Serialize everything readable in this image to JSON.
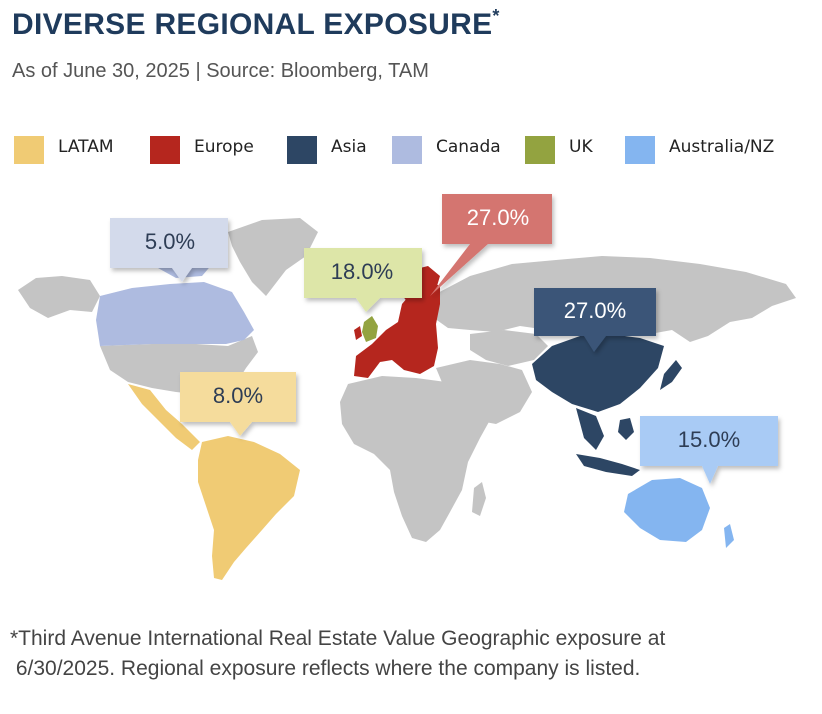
{
  "title": "DIVERSE REGIONAL EXPOSURE",
  "title_mark": "*",
  "subtitle": "As of June 30, 2025  |  Source: Bloomberg, TAM",
  "legend": [
    {
      "label": "LATAM",
      "color": "#f0cb74"
    },
    {
      "label": "Europe",
      "color": "#b5261e"
    },
    {
      "label": "Asia",
      "color": "#2d4664"
    },
    {
      "label": "Canada",
      "color": "#aebbe0"
    },
    {
      "label": "UK",
      "color": "#93a340"
    },
    {
      "label": "Australia/NZ",
      "color": "#84b5f0"
    }
  ],
  "map": {
    "land_color": "#c4c4c4",
    "regions": {
      "latam": {
        "value": "8.0%",
        "color": "#f0cb74",
        "callout_color": "#f5dc9c",
        "text_color": "#2d3d55"
      },
      "europe": {
        "value": "27.0%",
        "color": "#b5261e",
        "callout_color": "#d47470",
        "text_color": "#ffffff"
      },
      "asia": {
        "value": "27.0%",
        "color": "#2d4664",
        "callout_color": "#3a5578",
        "text_color": "#ffffff"
      },
      "canada": {
        "value": "5.0%",
        "color": "#aebbe0",
        "callout_color": "#d3daeb",
        "text_color": "#2d3d55"
      },
      "uk": {
        "value": "18.0%",
        "color": "#93a340",
        "callout_color": "#dde6a8",
        "text_color": "#2d3d55"
      },
      "australia_nz": {
        "value": "15.0%",
        "color": "#84b5f0",
        "callout_color": "#a9cbf5",
        "text_color": "#2d3d55"
      }
    }
  },
  "footnote_line1": "*Third Avenue International Real Estate Value Geographic exposure at",
  "footnote_line2": " 6/30/2025. Regional exposure reflects where the company is listed."
}
